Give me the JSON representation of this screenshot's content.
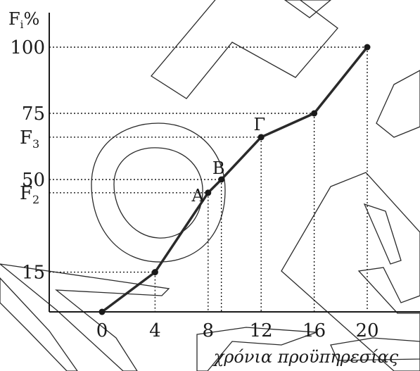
{
  "chart_data": {
    "type": "line",
    "ylabel_base": "F",
    "ylabel_sub": "i",
    "ylabel_unit": "%",
    "xlabel": "χρόνια προϋπηρεσίας",
    "xlim": [
      -4,
      20
    ],
    "ylim": [
      0,
      100
    ],
    "x_ticks": [
      0,
      4,
      8,
      12,
      16,
      20
    ],
    "x_tick_labels": [
      "0",
      "4",
      "8",
      "12",
      "16",
      "20"
    ],
    "y_ticks": [
      {
        "value": 100,
        "label": "100"
      },
      {
        "value": 75,
        "label": "75"
      },
      {
        "value": 50,
        "label": "50"
      },
      {
        "value": 15,
        "label": "15"
      }
    ],
    "y_marks": [
      {
        "value": 66,
        "base": "F",
        "sub": "3"
      },
      {
        "value": 45,
        "base": "F",
        "sub": "2"
      }
    ],
    "series": [
      {
        "x": [
          0,
          4,
          8,
          9,
          12,
          16,
          20
        ],
        "y": [
          0,
          15,
          45,
          50,
          66,
          75,
          100
        ]
      }
    ],
    "point_labels": [
      {
        "x": 8,
        "y": 45,
        "label": "A",
        "anchor": "left"
      },
      {
        "x": 9,
        "y": 50,
        "label": "B",
        "anchor": "top"
      },
      {
        "x": 12,
        "y": 66,
        "label": "Γ",
        "anchor": "top-left"
      }
    ],
    "guides": [
      {
        "x": 4,
        "y": 15
      },
      {
        "x": 8,
        "y": 45
      },
      {
        "x": 9,
        "y": 50
      },
      {
        "x": 12,
        "y": 66
      },
      {
        "x": 16,
        "y": 75
      },
      {
        "x": 20,
        "y": 100
      }
    ],
    "grid": false,
    "legend": "none"
  }
}
